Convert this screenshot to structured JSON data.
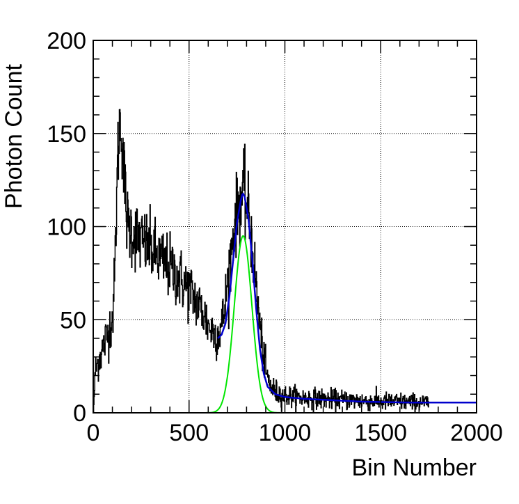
{
  "chart_data": {
    "type": "line",
    "title": "",
    "xlabel": "Bin Number",
    "ylabel": "Photon Count",
    "xlim": [
      0,
      2000
    ],
    "ylim": [
      0,
      200
    ],
    "grid": true,
    "x_ticks": [
      "0",
      "500",
      "1000",
      "1500",
      "2000"
    ],
    "y_ticks": [
      "0",
      "50",
      "100",
      "150",
      "200"
    ],
    "colors": {
      "histogram": "#000000",
      "total_fit": "#0000cc",
      "peak_gaussian": "#00e600"
    },
    "series": [
      {
        "key": "histogram",
        "style": "noisy",
        "x": [
          0,
          10,
          20,
          40,
          60,
          80,
          100,
          110,
          120,
          130,
          140,
          150,
          160,
          170,
          180,
          200,
          250,
          300,
          350,
          400,
          450,
          500,
          550,
          580,
          600,
          620,
          640,
          660,
          680,
          700,
          720,
          740,
          760,
          780,
          800,
          820,
          840,
          860,
          880,
          900,
          920,
          950,
          1000,
          1100,
          1200,
          1300,
          1400,
          1500,
          1600,
          1700,
          1750
        ],
        "y": [
          0,
          22,
          26,
          32,
          38,
          44,
          52,
          70,
          110,
          145,
          158,
          150,
          128,
          110,
          100,
          98,
          92,
          88,
          82,
          78,
          72,
          66,
          58,
          52,
          47,
          44,
          42,
          44,
          52,
          70,
          88,
          103,
          113,
          118,
          112,
          98,
          78,
          56,
          36,
          22,
          15,
          11,
          9,
          8,
          7.5,
          7,
          6.5,
          6,
          6,
          5.5,
          5.5
        ]
      },
      {
        "key": "total_fit",
        "style": "smooth",
        "x": [
          650,
          670,
          690,
          710,
          730,
          750,
          770,
          780,
          790,
          810,
          830,
          850,
          870,
          890,
          910,
          950,
          1000,
          1100,
          1200,
          1300,
          1400,
          1500,
          1600,
          1700,
          1800,
          1900,
          2000
        ],
        "y": [
          40,
          42,
          48,
          62,
          82,
          102,
          114,
          118,
          116,
          104,
          82,
          56,
          34,
          21,
          14,
          10,
          8.5,
          7.5,
          7,
          6.5,
          6,
          5.8,
          5.6,
          5.5,
          5.5,
          5.5,
          5.5
        ]
      },
      {
        "key": "peak_gaussian",
        "style": "gaussian",
        "mean": 782,
        "sigma": 46,
        "amplitude": 95,
        "x_range": [
          0,
          2000
        ]
      }
    ]
  }
}
